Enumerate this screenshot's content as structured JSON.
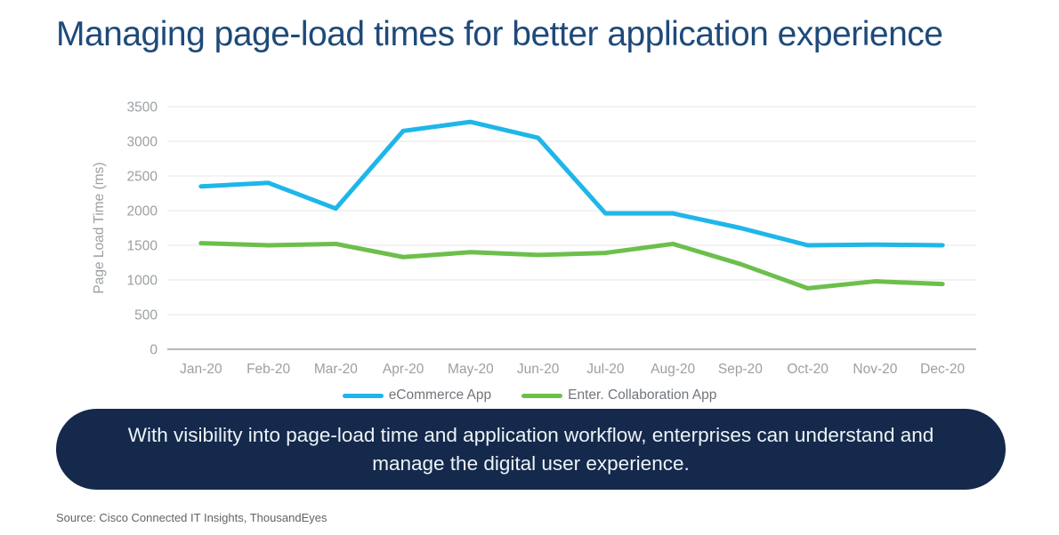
{
  "title": "Managing page-load times for better application experience",
  "banner": {
    "text": "With visibility into page-load time and application workflow, enterprises can understand and manage the digital user experience."
  },
  "source": "Source: Cisco Connected IT Insights, ThousandEyes",
  "colors": {
    "title_navy": "#1e4a7a",
    "banner_bg": "#14294b",
    "banner_text": "#eef3f9",
    "axis_text_gray": "#9ba0a4",
    "legend_text_gray": "#71767b",
    "gridline_gray": "#e5e5e5",
    "baseline_gray": "#a0a0a0",
    "source_gray": "#606468",
    "ecommerce_blue": "#1fb6e9",
    "collaboration_green": "#6cbf4b"
  },
  "chart_data": {
    "type": "line",
    "ylabel": "Page Load Time (ms)",
    "ylim": [
      0,
      3500
    ],
    "ytick_step": 500,
    "grid": true,
    "legend_position": "bottom",
    "categories": [
      "Jan-20",
      "Feb-20",
      "Mar-20",
      "Apr-20",
      "May-20",
      "Jun-20",
      "Jul-20",
      "Aug-20",
      "Sep-20",
      "Oct-20",
      "Nov-20",
      "Dec-20"
    ],
    "series": [
      {
        "name": "eCommerce App",
        "color": "#1fb6e9",
        "values": [
          2350,
          2400,
          2030,
          3150,
          3280,
          3050,
          1960,
          1960,
          1750,
          1500,
          1510,
          1500
        ]
      },
      {
        "name": "Enter. Collaboration App",
        "color": "#6cbf4b",
        "values": [
          1530,
          1500,
          1520,
          1330,
          1400,
          1360,
          1390,
          1520,
          1230,
          880,
          980,
          940
        ]
      }
    ]
  }
}
